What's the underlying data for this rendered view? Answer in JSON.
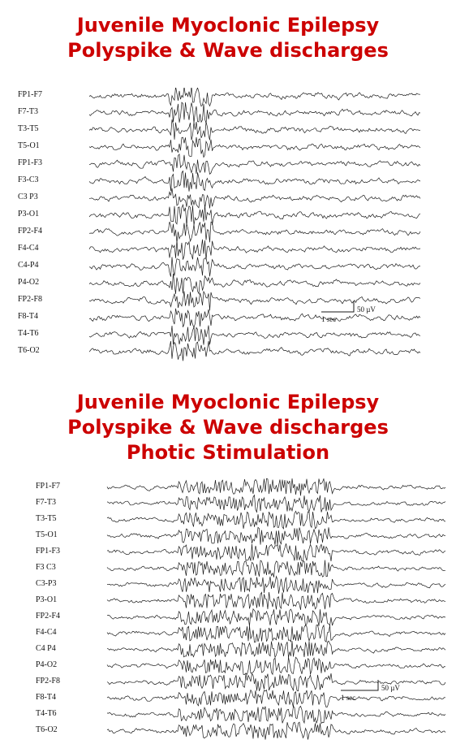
{
  "panel1": {
    "title_lines": [
      "Juvenile Myoclonic Epilepsy",
      "Polyspike & Wave discharges"
    ],
    "channels": [
      "FP1-F7",
      "F7-T3",
      "T3-T5",
      "T5-O1",
      "FP1-F3",
      "F3-C3",
      "C3 P3",
      "P3-O1",
      "FP2-F4",
      "F4-C4",
      "C4-P4",
      "P4-O2",
      "FP2-F8",
      "F8-T4",
      "T4-T6",
      "T6-O2"
    ],
    "scale_amplitude": "50 µV",
    "scale_time": "1 sec"
  },
  "panel2": {
    "title_lines": [
      "Juvenile Myoclonic Epilepsy",
      "Polyspike & Wave discharges",
      "Photic Stimulation"
    ],
    "channels": [
      "FP1-F7",
      "F7-T3",
      "T3-T5",
      "T5-O1",
      "FP1-F3",
      "F3 C3",
      "C3-P3",
      "P3-O1",
      "FP2-F4",
      "F4-C4",
      "C4 P4",
      "P4-O2",
      "FP2-F8",
      "F8-T4",
      "T4-T6",
      "T6-O2"
    ],
    "scale_amplitude": "50 µV",
    "scale_time": "1 sec"
  },
  "colors": {
    "title": "#cc0000",
    "trace": "#1a1a1a"
  }
}
